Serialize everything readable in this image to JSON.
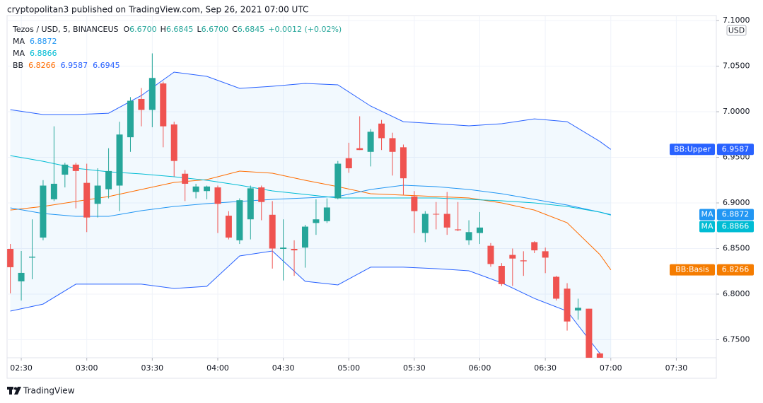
{
  "header": "cryptopolitan3 published on TradingView.com, Sep 26, 2021 07:00 UTC",
  "legend": {
    "symbol": "Tezos / USD, 5, BINANCEUS",
    "ohlc": [
      {
        "key": "O",
        "value": "6.6700"
      },
      {
        "key": "H",
        "value": "6.6845"
      },
      {
        "key": "L",
        "value": "6.6700"
      },
      {
        "key": "C",
        "value": "6.6845"
      }
    ],
    "change": "+0.0012 (+0.02%)",
    "indicators": [
      {
        "name": "MA",
        "values": [
          6.8872
        ],
        "colors": [
          "#2196f3"
        ]
      },
      {
        "name": "MA",
        "values": [
          6.8866
        ],
        "colors": [
          "#00bcd4"
        ]
      },
      {
        "name": "BB",
        "values": [
          6.8266,
          6.9587,
          6.6945
        ],
        "colors": [
          "#ff6d00",
          "#2962ff",
          "#2962ff"
        ]
      }
    ]
  },
  "currency": "USD",
  "tags": [
    {
      "label": "BB:Upper",
      "value": 6.9587,
      "color": "#2962ff"
    },
    {
      "label": "MA",
      "value": 6.8872,
      "color": "#2196f3"
    },
    {
      "label": "MA",
      "value": 6.8866,
      "color": "#00bcd4"
    },
    {
      "label": "BB:Basis",
      "value": 6.8266,
      "color": "#f57c00"
    }
  ],
  "footer": "TradingView",
  "chart_data": {
    "type": "candlestick",
    "up_color": "#26a69a",
    "down_color": "#ef5350",
    "grid": true,
    "xlim": [
      143.5,
      468
    ],
    "ylim": [
      6.731,
      7.1008
    ],
    "xticks": [
      {
        "value": 150,
        "label": "02:30"
      },
      {
        "value": 180,
        "label": "03:00"
      },
      {
        "value": 210,
        "label": "03:30"
      },
      {
        "value": 240,
        "label": "04:00"
      },
      {
        "value": 270,
        "label": "04:30"
      },
      {
        "value": 300,
        "label": "05:00"
      },
      {
        "value": 330,
        "label": "05:30"
      },
      {
        "value": 360,
        "label": "06:00"
      },
      {
        "value": 390,
        "label": "06:30"
      },
      {
        "value": 420,
        "label": "07:00"
      },
      {
        "value": 450,
        "label": "07:30"
      }
    ],
    "yticks": [
      {
        "value": 6.75,
        "label": "6.7500"
      },
      {
        "value": 6.8,
        "label": "6.8000"
      },
      {
        "value": 6.85,
        "label": "6.8500"
      },
      {
        "value": 6.9,
        "label": "6.9000"
      },
      {
        "value": 6.95,
        "label": "6.9500"
      },
      {
        "value": 7.0,
        "label": "7.0000"
      },
      {
        "value": 7.05,
        "label": "7.0500"
      },
      {
        "value": 7.1,
        "label": "7.1000"
      }
    ],
    "x": [
      145,
      150,
      155,
      160,
      165,
      170,
      175,
      180,
      185,
      190,
      195,
      200,
      205,
      210,
      215,
      220,
      225,
      230,
      235,
      240,
      245,
      250,
      255,
      260,
      265,
      270,
      275,
      280,
      285,
      290,
      295,
      300,
      305,
      310,
      315,
      320,
      325,
      330,
      335,
      340,
      345,
      350,
      355,
      360,
      365,
      370,
      375,
      380,
      385,
      390,
      395,
      400,
      405,
      410,
      415
    ],
    "open": [
      6.8496,
      6.814,
      6.84,
      6.862,
      6.904,
      6.931,
      6.942,
      6.922,
      6.899,
      6.915,
      6.919,
      6.972,
      7.014,
      7.002,
      7.031,
      6.986,
      6.932,
      6.912,
      6.913,
      6.917,
      6.886,
      6.859,
      6.882,
      6.917,
      6.887,
      6.8496,
      6.8496,
      6.851,
      6.878,
      6.88,
      6.905,
      6.949,
      6.96,
      6.956,
      6.987,
      6.971,
      6.961,
      6.907,
      6.867,
      6.888,
      6.888,
      6.871,
      6.859,
      6.867,
      6.853,
      6.831,
      6.843,
      6.837,
      6.857,
      6.847,
      6.819,
      6.806,
      6.782,
      6.784,
      6.735
    ],
    "high": [
      6.855,
      6.8473,
      6.882,
      6.925,
      6.984,
      6.944,
      6.944,
      6.943,
      6.938,
      6.96,
      6.989,
      7.016,
      7.026,
      7.064,
      7.033,
      6.989,
      6.936,
      6.921,
      6.919,
      6.919,
      6.891,
      6.905,
      6.919,
      6.919,
      6.902,
      6.882,
      6.859,
      6.876,
      6.904,
      6.905,
      6.946,
      6.966,
      6.995,
      6.981,
      6.991,
      6.977,
      6.964,
      6.913,
      6.891,
      6.901,
      6.912,
      6.901,
      6.881,
      6.89,
      6.856,
      6.834,
      6.85,
      6.847,
      6.858,
      6.851,
      6.82,
      6.812,
      6.795,
      6.784,
      6.736
    ],
    "low": [
      6.8008,
      6.793,
      6.8163,
      6.859,
      6.902,
      6.917,
      6.894,
      6.868,
      6.884,
      6.905,
      6.891,
      6.956,
      6.984,
      6.983,
      6.961,
      6.929,
      6.902,
      6.905,
      6.904,
      6.867,
      6.86,
      6.855,
      6.86,
      6.881,
      6.828,
      6.815,
      6.82,
      6.829,
      6.865,
      6.878,
      6.904,
      6.933,
      6.958,
      6.94,
      6.958,
      6.93,
      6.909,
      6.867,
      6.857,
      6.871,
      6.865,
      6.869,
      6.854,
      6.855,
      6.83,
      6.809,
      6.809,
      6.82,
      6.845,
      6.823,
      6.793,
      6.76,
      6.772,
      6.72,
      6.72
    ],
    "close": [
      6.8295,
      6.8233,
      6.8411,
      6.919,
      6.921,
      6.942,
      6.935,
      6.884,
      6.919,
      6.935,
      6.975,
      7.012,
      7.002,
      7.037,
      6.984,
      6.946,
      6.921,
      6.918,
      6.918,
      6.899,
      6.862,
      6.903,
      6.916,
      6.901,
      6.85,
      6.851,
      6.848,
      6.874,
      6.882,
      6.895,
      6.943,
      6.938,
      6.958,
      6.978,
      6.971,
      6.956,
      6.927,
      6.891,
      6.888,
      6.8876,
      6.873,
      6.87,
      6.868,
      6.873,
      6.833,
      6.811,
      6.839,
      6.836,
      6.848,
      6.84,
      6.795,
      6.77,
      6.785,
      6.725,
      6.728
    ],
    "band": {
      "x": [
        145,
        160,
        175,
        190,
        205,
        220,
        235,
        250,
        265,
        280,
        295,
        310,
        325,
        340,
        355,
        370,
        385,
        400,
        415,
        420
      ],
      "upper": [
        7.0023,
        6.9969,
        6.9969,
        6.9984,
        7.0178,
        7.0434,
        7.0388,
        7.0256,
        7.0279,
        7.031,
        7.0295,
        7.0062,
        6.9891,
        6.9868,
        6.9845,
        6.9868,
        6.9922,
        6.9891,
        6.9674,
        6.9587
      ],
      "lower": [
        6.7814,
        6.7891,
        6.8109,
        6.8109,
        6.8109,
        6.8062,
        6.8085,
        6.8419,
        6.8473,
        6.814,
        6.8101,
        6.8295,
        6.8295,
        6.8279,
        6.8256,
        6.8124,
        6.7953,
        6.7814,
        6.7349,
        6.6945
      ],
      "basis": [
        6.8922,
        6.8961,
        6.9016,
        6.907,
        6.9147,
        6.9225,
        6.9256,
        6.9349,
        6.9326,
        6.9248,
        6.9178,
        6.9101,
        6.9085,
        6.907,
        6.9054,
        6.9,
        6.8922,
        6.8783,
        6.8434,
        6.8266
      ],
      "band_color": "#2962ff",
      "basis_color": "#ff6d00",
      "fill_color": "#2196f3"
    },
    "ma": [
      {
        "color": "#2196f3",
        "values": [
          6.8946,
          6.8884,
          6.8853,
          6.8853,
          6.8915,
          6.8961,
          6.8992,
          6.9016,
          6.9039,
          6.9054,
          6.907,
          6.9147,
          6.9194,
          6.9178,
          6.9147,
          6.9101,
          6.9039,
          6.8977,
          6.8899,
          6.8872
        ]
      },
      {
        "color": "#00bcd4",
        "values": [
          6.9519,
          6.9457,
          6.938,
          6.9341,
          6.9318,
          6.9287,
          6.9248,
          6.9194,
          6.9132,
          6.9093,
          6.9054,
          6.9054,
          6.9054,
          6.9054,
          6.9039,
          6.9023,
          6.9,
          6.8961,
          6.8899,
          6.8866
        ]
      }
    ]
  }
}
